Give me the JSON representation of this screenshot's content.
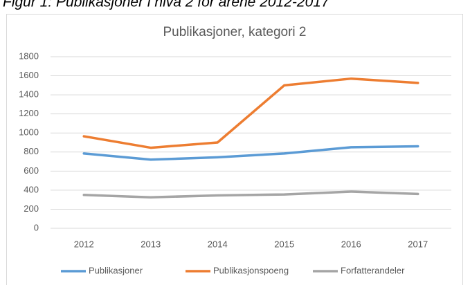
{
  "figure_caption": "Figur 1: Publikasjoner i nivå 2 for årene 2012-2017",
  "chart_data": {
    "type": "line",
    "title": "Publikasjoner, kategori 2",
    "categories": [
      "2012",
      "2013",
      "2014",
      "2015",
      "2016",
      "2017"
    ],
    "series": [
      {
        "name": "Publikasjoner",
        "color": "#5b9bd5",
        "values": [
          785,
          720,
          745,
          785,
          850,
          860
        ]
      },
      {
        "name": "Publikasjonspoeng",
        "color": "#ed7d31",
        "values": [
          965,
          845,
          900,
          1500,
          1570,
          1525
        ]
      },
      {
        "name": "Forfatterandeler",
        "color": "#a5a5a5",
        "values": [
          350,
          325,
          345,
          355,
          385,
          360
        ]
      }
    ],
    "ylim": [
      0,
      1800
    ],
    "yticks": [
      0,
      200,
      400,
      600,
      800,
      1000,
      1200,
      1400,
      1600,
      1800
    ],
    "grid": true,
    "legend": "bottom"
  }
}
